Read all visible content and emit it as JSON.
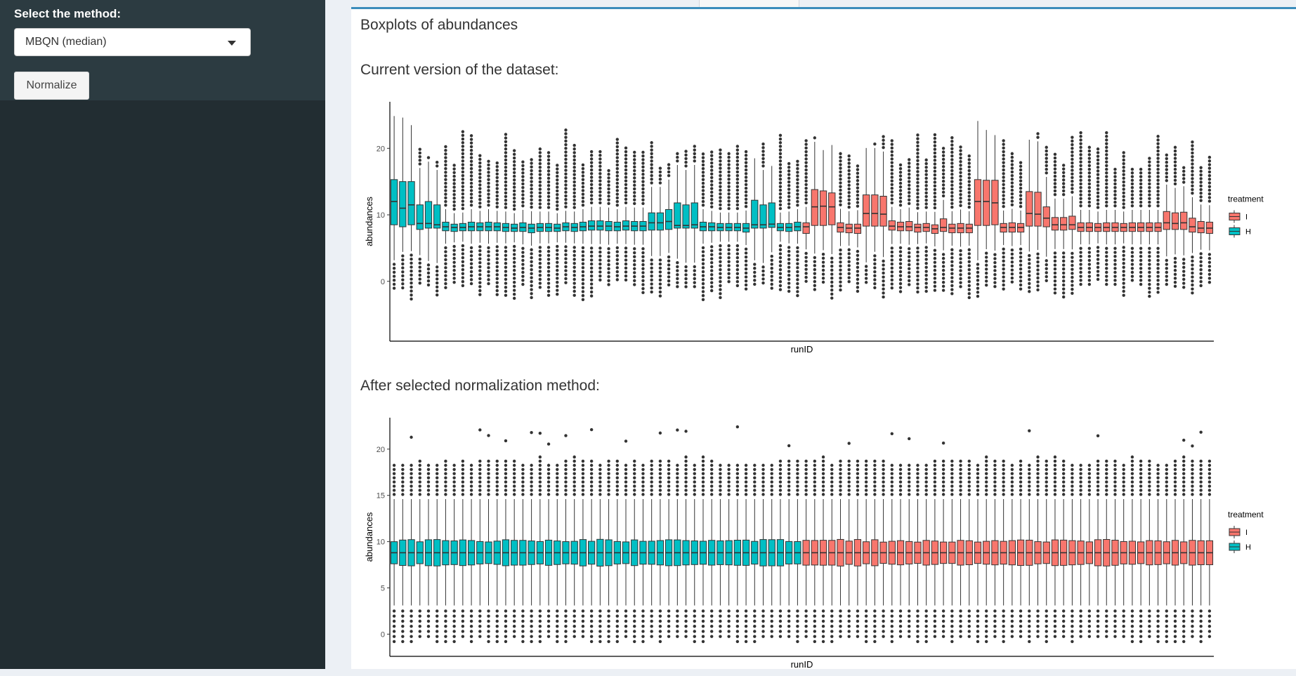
{
  "sidebar": {
    "method_label": "Select the method:",
    "method_select_value": "MBQN (median)",
    "normalize_button": "Normalize"
  },
  "main": {
    "box_title": "Boxplots of abundances",
    "current_title": "Current version of the dataset:",
    "after_title": "After selected normalization method:"
  },
  "colors": {
    "I": "#f8766d",
    "H": "#00bfc4",
    "accent": "#3c8dbc"
  },
  "chart_data": [
    {
      "type": "boxplot",
      "title": "",
      "xlabel": "runID",
      "ylabel": "abundances",
      "yticks": [
        0,
        10,
        20
      ],
      "ylim": [
        -9,
        27
      ],
      "legend": {
        "title": "treatment",
        "entries": [
          "I",
          "H"
        ],
        "placement": "right"
      },
      "series": [
        {
          "name": "H",
          "boxes": [
            {
              "q1": 8.5,
              "median": 12,
              "q3": 15.3
            },
            {
              "q1": 8.2,
              "median": 11,
              "q3": 15
            },
            {
              "q1": 8.5,
              "median": 11.5,
              "q3": 15
            },
            {
              "q1": 7.8,
              "median": 8.7,
              "q3": 11.5
            },
            {
              "q1": 8,
              "median": 8.7,
              "q3": 12
            },
            {
              "q1": 8,
              "median": 8.5,
              "q3": 11.5
            },
            {
              "q1": 7.6,
              "median": 8.2,
              "q3": 8.9
            },
            {
              "q1": 7.5,
              "median": 8.1,
              "q3": 8.6
            },
            {
              "q1": 7.6,
              "median": 8.1,
              "q3": 8.7
            },
            {
              "q1": 7.6,
              "median": 8.2,
              "q3": 8.9
            },
            {
              "q1": 7.6,
              "median": 8.2,
              "q3": 8.8
            },
            {
              "q1": 7.6,
              "median": 8.2,
              "q3": 8.9
            },
            {
              "q1": 7.6,
              "median": 8.2,
              "q3": 8.8
            },
            {
              "q1": 7.5,
              "median": 8.1,
              "q3": 8.7
            },
            {
              "q1": 7.5,
              "median": 8,
              "q3": 8.6
            },
            {
              "q1": 7.5,
              "median": 8.1,
              "q3": 8.8
            },
            {
              "q1": 7.3,
              "median": 8,
              "q3": 8.6
            },
            {
              "q1": 7.5,
              "median": 8.1,
              "q3": 8.7
            },
            {
              "q1": 7.5,
              "median": 8.1,
              "q3": 8.7
            },
            {
              "q1": 7.5,
              "median": 8,
              "q3": 8.6
            },
            {
              "q1": 7.6,
              "median": 8.2,
              "q3": 8.8
            },
            {
              "q1": 7.5,
              "median": 8.1,
              "q3": 8.7
            },
            {
              "q1": 7.6,
              "median": 8.2,
              "q3": 8.9
            },
            {
              "q1": 7.7,
              "median": 8.3,
              "q3": 9.1
            },
            {
              "q1": 7.7,
              "median": 8.3,
              "q3": 9.1
            },
            {
              "q1": 7.6,
              "median": 8.3,
              "q3": 9
            },
            {
              "q1": 7.6,
              "median": 8.2,
              "q3": 8.9
            },
            {
              "q1": 7.7,
              "median": 8.3,
              "q3": 9.1
            },
            {
              "q1": 7.6,
              "median": 8.3,
              "q3": 9
            },
            {
              "q1": 7.6,
              "median": 8.3,
              "q3": 9
            },
            {
              "q1": 7.7,
              "median": 8.8,
              "q3": 10.3
            },
            {
              "q1": 7.7,
              "median": 8.8,
              "q3": 10.3
            },
            {
              "q1": 7.8,
              "median": 9,
              "q3": 10.8
            },
            {
              "q1": 8,
              "median": 8.4,
              "q3": 11.8
            },
            {
              "q1": 8,
              "median": 8.4,
              "q3": 11.5
            },
            {
              "q1": 8,
              "median": 8.5,
              "q3": 11.8
            },
            {
              "q1": 7.6,
              "median": 8.2,
              "q3": 8.9
            },
            {
              "q1": 7.6,
              "median": 8.2,
              "q3": 8.8
            },
            {
              "q1": 7.6,
              "median": 8.1,
              "q3": 8.7
            },
            {
              "q1": 7.6,
              "median": 8.1,
              "q3": 8.7
            },
            {
              "q1": 7.6,
              "median": 8.1,
              "q3": 8.7
            },
            {
              "q1": 7.4,
              "median": 8,
              "q3": 8.7
            },
            {
              "q1": 8,
              "median": 8.5,
              "q3": 12.2
            },
            {
              "q1": 8,
              "median": 8.5,
              "q3": 11.5
            },
            {
              "q1": 8.1,
              "median": 8.6,
              "q3": 11.8
            },
            {
              "q1": 7.6,
              "median": 8.1,
              "q3": 8.7
            },
            {
              "q1": 7.5,
              "median": 8.1,
              "q3": 8.7
            },
            {
              "q1": 7.6,
              "median": 8.2,
              "q3": 8.9
            }
          ]
        },
        {
          "name": "I",
          "boxes": [
            {
              "q1": 7.2,
              "median": 8.2,
              "q3": 8.8
            },
            {
              "q1": 8.4,
              "median": 11.2,
              "q3": 13.8
            },
            {
              "q1": 8.4,
              "median": 11.3,
              "q3": 13.6
            },
            {
              "q1": 8.5,
              "median": 11.2,
              "q3": 13.3
            },
            {
              "q1": 7.4,
              "median": 8.1,
              "q3": 8.8
            },
            {
              "q1": 7.3,
              "median": 8,
              "q3": 8.6
            },
            {
              "q1": 7.2,
              "median": 8,
              "q3": 8.6
            },
            {
              "q1": 8.3,
              "median": 10.2,
              "q3": 13
            },
            {
              "q1": 8.3,
              "median": 10.2,
              "q3": 13
            },
            {
              "q1": 8.3,
              "median": 10.1,
              "q3": 12.8
            },
            {
              "q1": 7.7,
              "median": 8.3,
              "q3": 9.1
            },
            {
              "q1": 7.6,
              "median": 8.2,
              "q3": 8.9
            },
            {
              "q1": 7.6,
              "median": 8.2,
              "q3": 9
            },
            {
              "q1": 7.4,
              "median": 8.1,
              "q3": 8.6
            },
            {
              "q1": 7.5,
              "median": 8.1,
              "q3": 8.7
            },
            {
              "q1": 7.2,
              "median": 7.9,
              "q3": 8.5
            },
            {
              "q1": 7.5,
              "median": 8.1,
              "q3": 9.4
            },
            {
              "q1": 7.3,
              "median": 8,
              "q3": 8.6
            },
            {
              "q1": 7.3,
              "median": 8,
              "q3": 8.7
            },
            {
              "q1": 7.3,
              "median": 8,
              "q3": 8.6
            },
            {
              "q1": 8.4,
              "median": 12,
              "q3": 15.3
            },
            {
              "q1": 8.4,
              "median": 12,
              "q3": 15.2
            },
            {
              "q1": 8.5,
              "median": 11.8,
              "q3": 15.2
            },
            {
              "q1": 7.4,
              "median": 8.1,
              "q3": 8.7
            },
            {
              "q1": 7.4,
              "median": 8.1,
              "q3": 8.8
            },
            {
              "q1": 7.4,
              "median": 8.1,
              "q3": 8.7
            },
            {
              "q1": 8.3,
              "median": 10.2,
              "q3": 13.5
            },
            {
              "q1": 8.3,
              "median": 10.1,
              "q3": 13.4
            },
            {
              "q1": 8.2,
              "median": 9.5,
              "q3": 11.2
            },
            {
              "q1": 7.7,
              "median": 8.5,
              "q3": 9.6
            },
            {
              "q1": 7.7,
              "median": 8.5,
              "q3": 9.6
            },
            {
              "q1": 7.8,
              "median": 8.5,
              "q3": 9.8
            },
            {
              "q1": 7.5,
              "median": 8.1,
              "q3": 8.8
            },
            {
              "q1": 7.5,
              "median": 8.1,
              "q3": 8.8
            },
            {
              "q1": 7.5,
              "median": 8.1,
              "q3": 8.7
            },
            {
              "q1": 7.5,
              "median": 8.1,
              "q3": 8.8
            },
            {
              "q1": 7.5,
              "median": 8.1,
              "q3": 8.8
            },
            {
              "q1": 7.5,
              "median": 8.1,
              "q3": 8.7
            },
            {
              "q1": 7.5,
              "median": 8.1,
              "q3": 8.8
            },
            {
              "q1": 7.5,
              "median": 8.1,
              "q3": 8.8
            },
            {
              "q1": 7.5,
              "median": 8.1,
              "q3": 8.8
            },
            {
              "q1": 7.5,
              "median": 8.1,
              "q3": 8.8
            },
            {
              "q1": 7.8,
              "median": 8.8,
              "q3": 10.5
            },
            {
              "q1": 7.8,
              "median": 8.7,
              "q3": 10.3
            },
            {
              "q1": 7.8,
              "median": 8.8,
              "q3": 10.4
            },
            {
              "q1": 7.4,
              "median": 8.2,
              "q3": 9.5
            },
            {
              "q1": 7.3,
              "median": 8,
              "q3": 9
            },
            {
              "q1": 7.2,
              "median": 8,
              "q3": 8.9
            }
          ]
        }
      ]
    },
    {
      "type": "boxplot",
      "title": "",
      "xlabel": "runID",
      "ylabel": "abundances",
      "yticks": [
        0,
        5,
        10,
        15,
        20
      ],
      "ylim": [
        -2.4,
        23.4
      ],
      "legend": {
        "title": "treatment",
        "entries": [
          "I",
          "H"
        ],
        "placement": "right"
      },
      "series": [
        {
          "name": "H",
          "runs": 48,
          "box": {
            "q1": 7.5,
            "median": 8.8,
            "q3": 10.1,
            "whisker_low": 3.1,
            "whisker_high": 14.6,
            "outlier_high_max": 19.3,
            "outlier_low_min": -1.3
          }
        },
        {
          "name": "I",
          "runs": 48,
          "box": {
            "q1": 7.5,
            "median": 8.8,
            "q3": 10.1,
            "whisker_low": 3.1,
            "whisker_high": 14.6,
            "outlier_high_max": 19.3,
            "outlier_low_min": -1.3
          }
        }
      ]
    }
  ]
}
